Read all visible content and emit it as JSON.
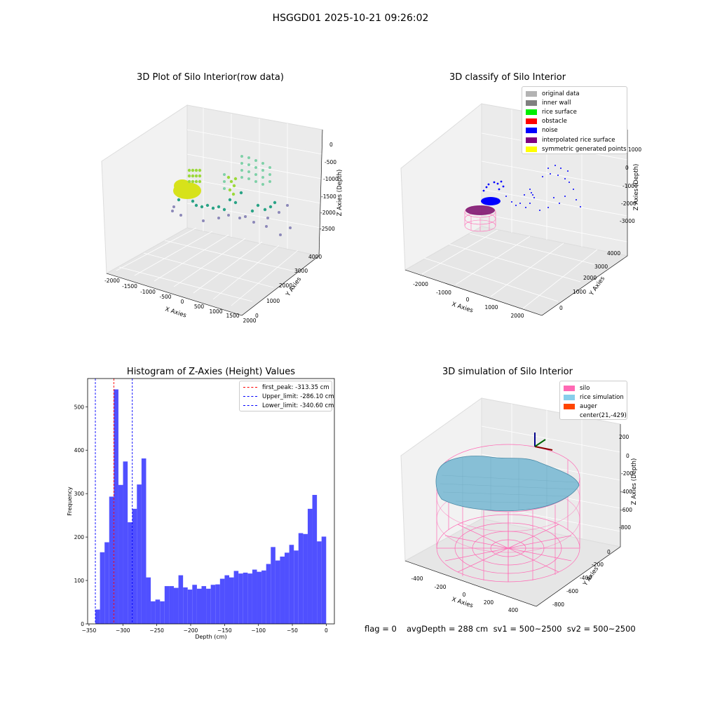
{
  "suptitle": "HSGGD01 2025-10-21 09:26:02",
  "panel1": {
    "title": "3D Plot of Silo Interior(row data)",
    "xlabel": "X Axies",
    "ylabel": "Y Axies",
    "zlabel": "Z Axies (Depth)",
    "xticks": [
      "-2000",
      "-1500",
      "-1000",
      "-500",
      "0",
      "500",
      "1000",
      "1500",
      "2000"
    ],
    "yticks": [
      "0",
      "1000",
      "2000",
      "3000",
      "4000"
    ],
    "zticks": [
      "0",
      "-500",
      "-1000",
      "-1500",
      "-2000",
      "-2500"
    ]
  },
  "panel2": {
    "title": "3D classify of Silo Interior",
    "xlabel": "X Axies",
    "ylabel": "Y Axies",
    "zlabel": "Z Axies (Depth)",
    "xticks": [
      "-2000",
      "-1000",
      "0",
      "1000",
      "2000"
    ],
    "yticks": [
      "0",
      "1000",
      "2000",
      "3000",
      "4000"
    ],
    "zticks": [
      "1000",
      "0",
      "-1000",
      "-2000",
      "-3000"
    ],
    "legend": [
      {
        "label": "original data",
        "color": "#b3b3b3"
      },
      {
        "label": "inner wall",
        "color": "#808080"
      },
      {
        "label": "rice surface",
        "color": "#00ee00"
      },
      {
        "label": "obstacle",
        "color": "#ff0000"
      },
      {
        "label": "noise",
        "color": "#0000ff"
      },
      {
        "label": "interpolated rice surface",
        "color": "#800080"
      },
      {
        "label": "symmetric generated points",
        "color": "#ffff00"
      }
    ]
  },
  "panel3": {
    "chart_data": {
      "type": "bar",
      "title": "Histogram of Z-Axies (Height) Values",
      "xlabel": "Depth (cm)",
      "ylabel": "Frequency",
      "xlim": [
        -352,
        12
      ],
      "ylim": [
        0,
        565
      ],
      "bin_start": -340.6,
      "bin_width": 6.81,
      "values": [
        33,
        165,
        188,
        293,
        540,
        320,
        374,
        234,
        265,
        321,
        381,
        107,
        52,
        56,
        52,
        87,
        87,
        83,
        112,
        84,
        79,
        90,
        81,
        87,
        81,
        90,
        91,
        104,
        112,
        107,
        122,
        116,
        118,
        116,
        125,
        120,
        123,
        138,
        177,
        146,
        155,
        164,
        182,
        169,
        209,
        207,
        265,
        297,
        190,
        201
      ],
      "xticks": [
        -350,
        -300,
        -250,
        -200,
        -150,
        -100,
        -50,
        0
      ],
      "yticks": [
        0,
        100,
        200,
        300,
        400,
        500
      ],
      "bar_color": "#5050ff",
      "vlines": [
        {
          "label": "first_peak: -313.35 cm",
          "x": -313.35,
          "color": "#ff0000"
        },
        {
          "label": "Upper_limit: -286.10 cm",
          "x": -286.1,
          "color": "#0000ff"
        },
        {
          "label": "Lower_limit: -340.60 cm",
          "x": -340.6,
          "color": "#0000ff"
        }
      ],
      "legend_position": "top-right"
    }
  },
  "panel4": {
    "title": "3D simulation of Silo Interior",
    "xlabel": "X Axies",
    "ylabel": "Y Axies",
    "zlabel": "Z Axies (Depth)",
    "xticks": [
      "-400",
      "-200",
      "0",
      "200",
      "400"
    ],
    "yticks": [
      "0",
      "-200",
      "-400",
      "-600",
      "-800"
    ],
    "zticks": [
      "200",
      "0",
      "-200",
      "-400",
      "-600",
      "-800"
    ],
    "legend": [
      {
        "label": "silo",
        "color": "#ff69b4"
      },
      {
        "label": "rice simulation",
        "color": "#87ceeb"
      },
      {
        "label": "auger",
        "color": "#ff4500"
      },
      {
        "label": "center(21,-429)",
        "color": "#ffffff"
      }
    ]
  },
  "footer": {
    "flag": "flag = 0",
    "avg": "avgDepth = 288 cm  sv1 = 500~2500  sv2 = 500~2500"
  }
}
